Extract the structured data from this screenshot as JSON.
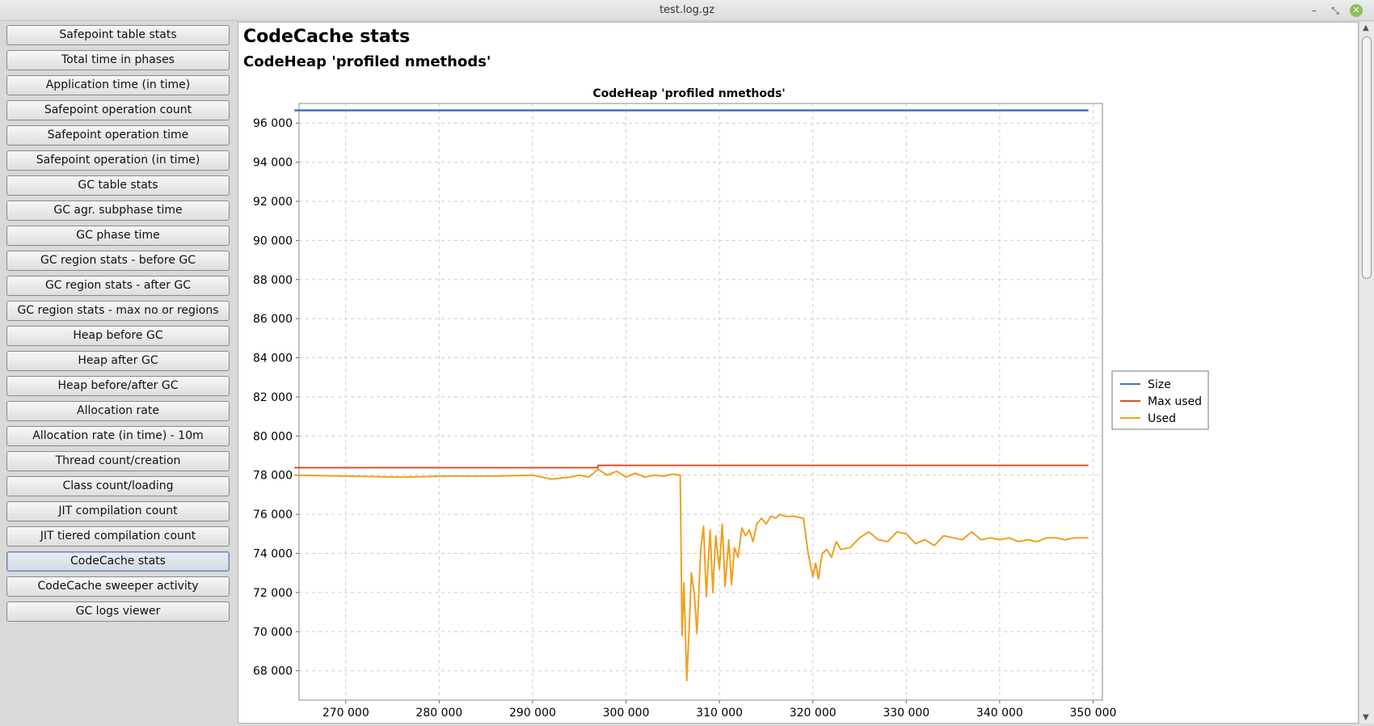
{
  "window": {
    "title": "test.log.gz",
    "controls": [
      "–",
      "⤡",
      "✕"
    ]
  },
  "sidebar": {
    "items": [
      {
        "label": "Safepoint table stats"
      },
      {
        "label": "Total time in phases"
      },
      {
        "label": "Application time (in time)"
      },
      {
        "label": "Safepoint operation count"
      },
      {
        "label": "Safepoint operation time"
      },
      {
        "label": "Safepoint operation (in time)"
      },
      {
        "label": "GC table stats"
      },
      {
        "label": "GC agr. subphase time"
      },
      {
        "label": "GC phase time"
      },
      {
        "label": "GC region stats - before GC"
      },
      {
        "label": "GC region stats - after GC"
      },
      {
        "label": "GC region stats - max no or regions"
      },
      {
        "label": "Heap before GC"
      },
      {
        "label": "Heap after GC"
      },
      {
        "label": "Heap before/after GC"
      },
      {
        "label": "Allocation rate"
      },
      {
        "label": "Allocation rate (in time) - 10m"
      },
      {
        "label": "Thread count/creation"
      },
      {
        "label": "Class count/loading"
      },
      {
        "label": "JIT compilation count"
      },
      {
        "label": "JIT tiered compilation count"
      },
      {
        "label": "CodeCache stats",
        "active": true
      },
      {
        "label": "CodeCache sweeper activity"
      },
      {
        "label": "GC logs viewer"
      }
    ]
  },
  "main": {
    "heading": "CodeCache stats",
    "subheading": "CodeHeap 'profiled nmethods'"
  },
  "chart_data": {
    "type": "line",
    "title": "CodeHeap 'profiled nmethods'",
    "xlabel": "",
    "ylabel": "",
    "xlim": [
      265000,
      351000
    ],
    "ylim": [
      66500,
      97000
    ],
    "x_ticks": [
      270000,
      280000,
      290000,
      300000,
      310000,
      320000,
      330000,
      340000,
      350000
    ],
    "x_tick_labels": [
      "270 000",
      "280 000",
      "290 000",
      "300 000",
      "310 000",
      "320 000",
      "330 000",
      "340 000",
      "350 000"
    ],
    "y_ticks": [
      68000,
      70000,
      72000,
      74000,
      76000,
      78000,
      80000,
      82000,
      84000,
      86000,
      88000,
      90000,
      92000,
      94000,
      96000
    ],
    "y_tick_labels": [
      "68 000",
      "70 000",
      "72 000",
      "74 000",
      "76 000",
      "78 000",
      "80 000",
      "82 000",
      "84 000",
      "86 000",
      "88 000",
      "90 000",
      "92 000",
      "94 000",
      "96 000"
    ],
    "grid": true,
    "legend": "right",
    "series": [
      {
        "name": "Size",
        "color": "#4472c4",
        "x": [
          264500,
          349500
        ],
        "y": [
          96650,
          96650
        ]
      },
      {
        "name": "Max used",
        "color": "#d9522b",
        "x": [
          264500,
          297000,
          297000,
          349500
        ],
        "y": [
          78380,
          78380,
          78500,
          78500
        ]
      },
      {
        "name": "Used",
        "color": "#f0a020",
        "x": [
          264500,
          270000,
          276000,
          281000,
          286000,
          290000,
          292000,
          294000,
          295000,
          296000,
          297000,
          298000,
          299000,
          300000,
          301000,
          302000,
          303000,
          304000,
          305000,
          305800,
          306000,
          306200,
          306500,
          306800,
          307000,
          307300,
          307600,
          308000,
          308300,
          308600,
          309000,
          309300,
          309600,
          310000,
          310300,
          310600,
          311000,
          311300,
          311600,
          312000,
          312400,
          312800,
          313200,
          313600,
          314000,
          314500,
          315000,
          315500,
          316000,
          316500,
          317000,
          318000,
          319000,
          319500,
          320000,
          320300,
          320600,
          321000,
          321500,
          322000,
          322500,
          323000,
          324000,
          325000,
          326000,
          327000,
          328000,
          329000,
          330000,
          331000,
          332000,
          333000,
          334000,
          335000,
          336000,
          337000,
          338000,
          339000,
          340000,
          341000,
          342000,
          343000,
          344000,
          345000,
          346000,
          347000,
          348000,
          349500
        ],
        "y": [
          78000,
          77950,
          77900,
          77950,
          77950,
          78000,
          77800,
          77900,
          78000,
          77900,
          78300,
          78000,
          78200,
          77900,
          78100,
          77900,
          78000,
          77950,
          78050,
          78000,
          69800,
          72500,
          67500,
          70500,
          73000,
          72000,
          69900,
          74200,
          75400,
          71800,
          75200,
          72000,
          74900,
          73200,
          75500,
          72300,
          74700,
          72400,
          74300,
          73800,
          75300,
          74900,
          75200,
          74600,
          75500,
          75800,
          75500,
          75900,
          75800,
          76000,
          75900,
          75900,
          75800,
          74000,
          72800,
          73500,
          72700,
          74000,
          74200,
          73800,
          74600,
          74200,
          74300,
          74800,
          75100,
          74700,
          74600,
          75100,
          75000,
          74500,
          74700,
          74400,
          74900,
          74800,
          74700,
          75100,
          74700,
          74800,
          74700,
          74800,
          74600,
          74700,
          74600,
          74800,
          74800,
          74700,
          74800,
          74800
        ]
      }
    ]
  }
}
